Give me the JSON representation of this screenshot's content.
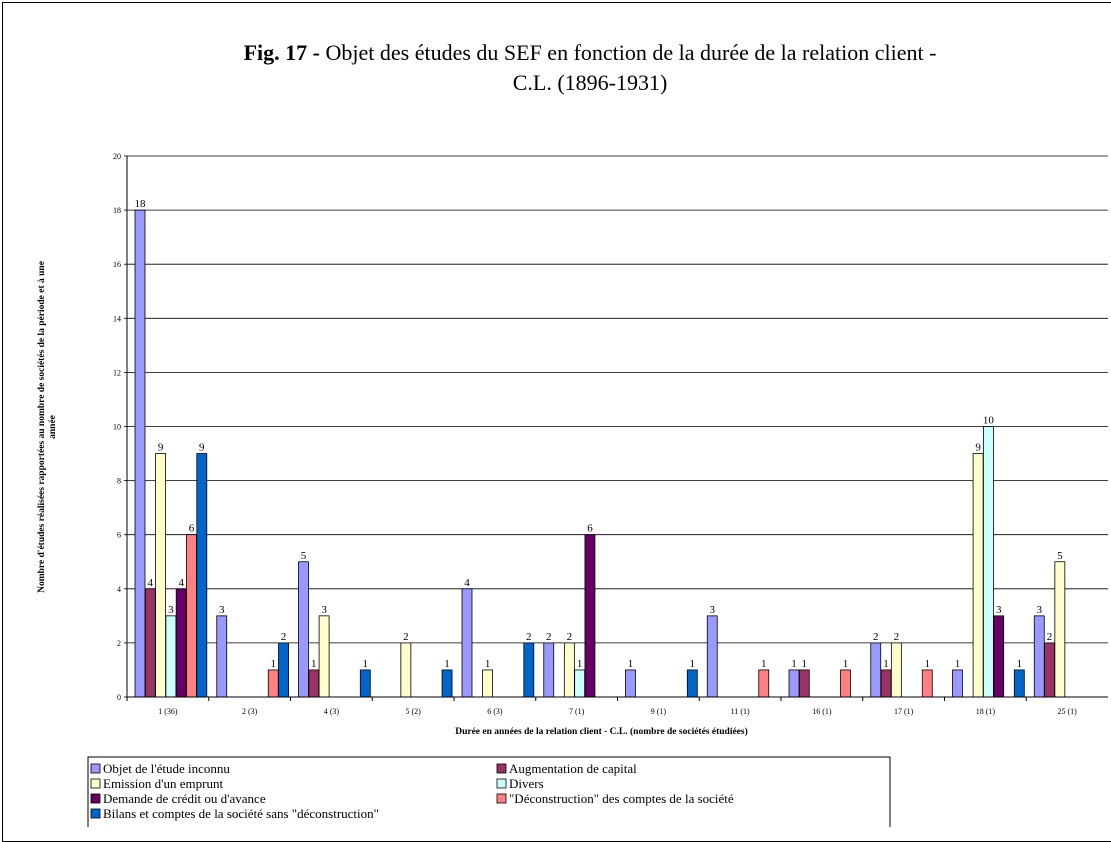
{
  "chart_data": {
    "type": "bar",
    "title_prefix": "Fig. 17 -",
    "title": "Objet des études du SEF en fonction de la durée de la relation client - C.L. (1896-1931)",
    "ylabel": [
      "Nombre d'études réalisées rapportées au nombre de sociétés de la période et à une",
      "année"
    ],
    "xlabel": "Durée en années de la relation client - C.L. (nombre de sociétés étudiées)",
    "categories": [
      "1 (36)",
      "2 (3)",
      "4 (3)",
      "5 (2)",
      "6 (3)",
      "7 (1)",
      "9 (1)",
      "11 (1)",
      "16 (1)",
      "17 (1)",
      "18 (1)",
      "25 (1)"
    ],
    "series": [
      {
        "name": "Objet de l'étude inconnu",
        "color": "#9999ff",
        "values": [
          18,
          3,
          5,
          0,
          4,
          2,
          1,
          3,
          1,
          2,
          1,
          3
        ]
      },
      {
        "name": "Augmentation de capital",
        "color": "#993366",
        "values": [
          4,
          0,
          1,
          0,
          0,
          0,
          0,
          0,
          1,
          1,
          0,
          2
        ]
      },
      {
        "name": "Emission d'un emprunt",
        "color": "#ffffcc",
        "values": [
          9,
          0,
          3,
          2,
          1,
          2,
          0,
          0,
          0,
          2,
          9,
          5
        ]
      },
      {
        "name": "Divers",
        "color": "#ccffff",
        "values": [
          3,
          0,
          0,
          0,
          0,
          1,
          0,
          0,
          0,
          0,
          10,
          0
        ]
      },
      {
        "name": "Demande de crédit ou d'avance",
        "color": "#660066",
        "values": [
          4,
          0,
          0,
          0,
          0,
          6,
          0,
          0,
          0,
          0,
          3,
          0
        ]
      },
      {
        "name": "\"Déconstruction\" des comptes de la société",
        "color": "#ff8080",
        "values": [
          6,
          1,
          0,
          0,
          0,
          0,
          0,
          1,
          1,
          1,
          0,
          0
        ]
      },
      {
        "name": "Bilans et comptes de la société sans \"déconstruction\"",
        "color": "#0066cc",
        "values": [
          9,
          2,
          1,
          1,
          2,
          0,
          1,
          0,
          0,
          0,
          1,
          0
        ]
      }
    ],
    "ylim": [
      0,
      20
    ],
    "yticks": [
      0,
      2,
      4,
      6,
      8,
      10,
      12,
      14,
      16,
      18,
      20
    ],
    "grid": true
  }
}
